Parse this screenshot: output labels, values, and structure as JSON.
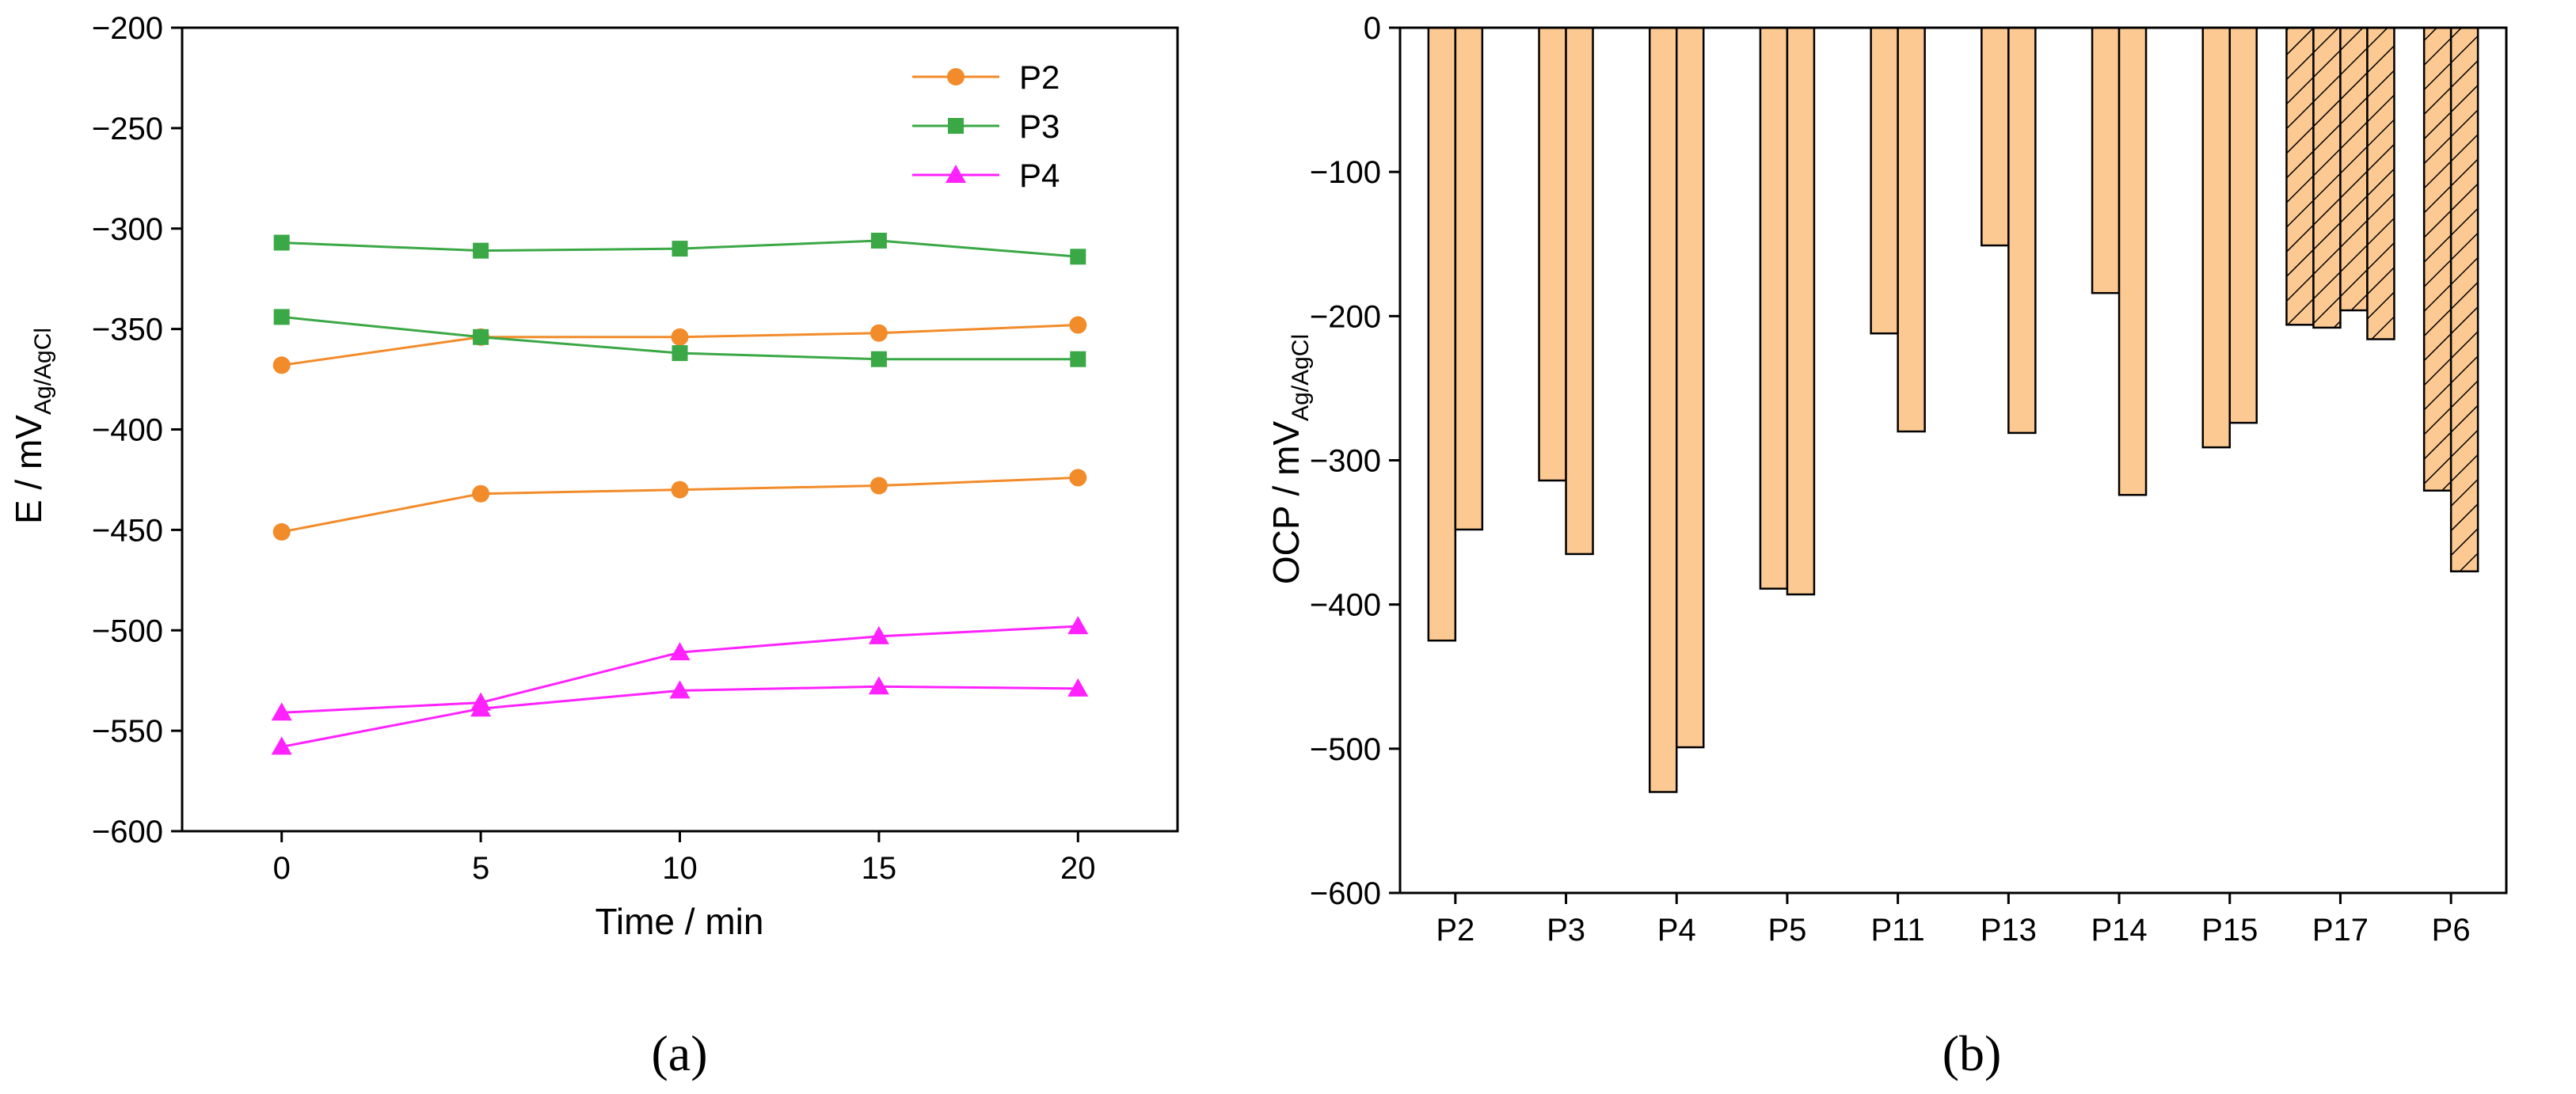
{
  "chart_data": [
    {
      "type": "line",
      "panel_label": "(a)",
      "xlabel": "Time / min",
      "ylabel_main": "E / mV",
      "ylabel_sub": "Ag/AgCl",
      "xlim": [
        -2.5,
        22.5
      ],
      "ylim": [
        -600,
        -200
      ],
      "xticks": [
        0,
        5,
        10,
        15,
        20
      ],
      "yticks": [
        -600,
        -550,
        -500,
        -450,
        -400,
        -350,
        -300,
        -250,
        -200
      ],
      "x": [
        0,
        5,
        10,
        15,
        20
      ],
      "legend_position": "top-right",
      "series": [
        {
          "name": "P2",
          "legend": true,
          "color": "#f28b2a",
          "marker": "circle",
          "values": [
            -368,
            -354,
            -354,
            -352,
            -348
          ]
        },
        {
          "name": "P2",
          "legend": false,
          "color": "#f28b2a",
          "marker": "circle",
          "values": [
            -451,
            -432,
            -430,
            -428,
            -424
          ]
        },
        {
          "name": "P3",
          "legend": true,
          "color": "#3aa845",
          "marker": "square",
          "values": [
            -307,
            -311,
            -310,
            -306,
            -314
          ]
        },
        {
          "name": "P3",
          "legend": false,
          "color": "#3aa845",
          "marker": "square",
          "values": [
            -344,
            -354,
            -362,
            -365,
            -365
          ]
        },
        {
          "name": "P4",
          "legend": true,
          "color": "#ff22ff",
          "marker": "triangle",
          "values": [
            -541,
            -536,
            -511,
            -503,
            -498
          ]
        },
        {
          "name": "P4",
          "legend": false,
          "color": "#ff22ff",
          "marker": "triangle",
          "values": [
            -558,
            -539,
            -530,
            -528,
            -529
          ]
        }
      ]
    },
    {
      "type": "bar",
      "panel_label": "(b)",
      "xlabel": "",
      "ylabel_main": "OCP / mV",
      "ylabel_sub": "Ag/AgCl",
      "ylim": [
        -600,
        0
      ],
      "yticks": [
        -600,
        -500,
        -400,
        -300,
        -200,
        -100,
        0
      ],
      "categories": [
        "P2",
        "P3",
        "P4",
        "P5",
        "P11",
        "P13",
        "P14",
        "P15",
        "P17",
        "P6"
      ],
      "bar_color": "#fdc992",
      "bars": [
        {
          "category": "P2",
          "values": [
            -425,
            -348
          ],
          "hatched": false
        },
        {
          "category": "P3",
          "values": [
            -314,
            -365
          ],
          "hatched": false
        },
        {
          "category": "P4",
          "values": [
            -530,
            -499
          ],
          "hatched": false
        },
        {
          "category": "P5",
          "values": [
            -389,
            -393
          ],
          "hatched": false
        },
        {
          "category": "P11",
          "values": [
            -212,
            -280
          ],
          "hatched": false
        },
        {
          "category": "P13",
          "values": [
            -151,
            -281
          ],
          "hatched": false
        },
        {
          "category": "P14",
          "values": [
            -184,
            -324
          ],
          "hatched": false
        },
        {
          "category": "P15",
          "values": [
            -291,
            -274
          ],
          "hatched": false
        },
        {
          "category": "P17",
          "values": [
            -206,
            -208,
            -196,
            -216
          ],
          "hatched": true
        },
        {
          "category": "P6",
          "values": [
            -321,
            -377
          ],
          "hatched": true
        }
      ]
    }
  ]
}
